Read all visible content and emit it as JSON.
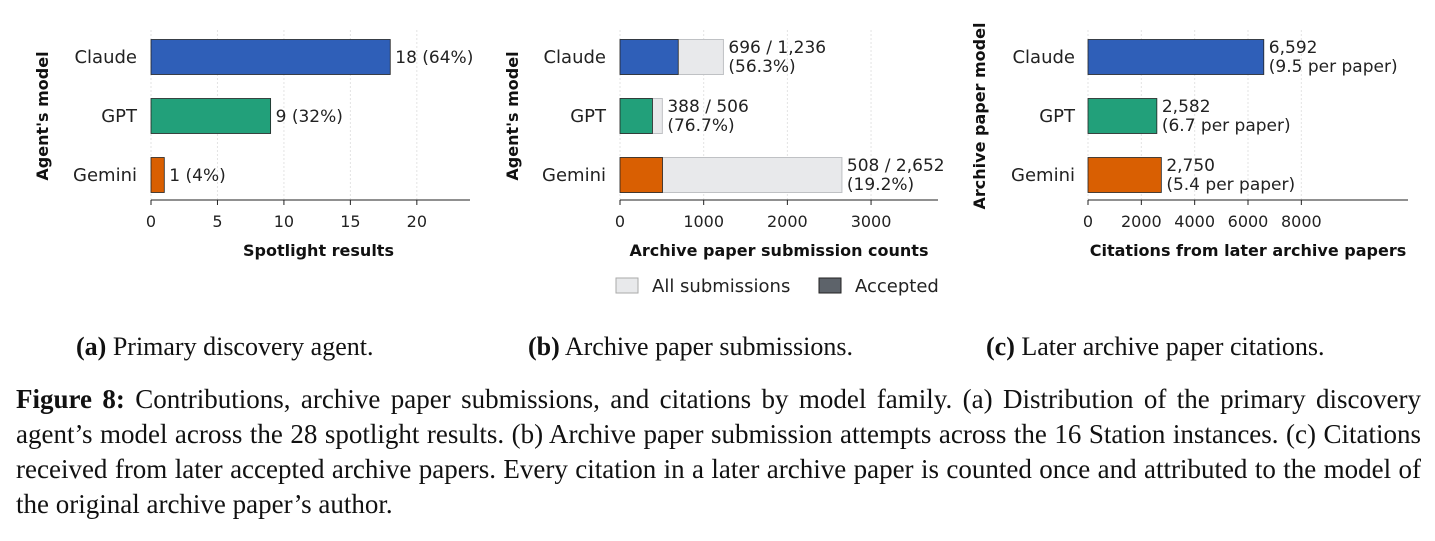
{
  "chart_data": [
    {
      "type": "bar",
      "orientation": "horizontal",
      "categories": [
        "Claude",
        "GPT",
        "Gemini"
      ],
      "values": [
        18,
        9,
        1
      ],
      "value_labels": [
        "18  (64%)",
        "9  (32%)",
        "1  (4%)"
      ],
      "colors": [
        "#2f5fb8",
        "#22a07a",
        "#d95f02"
      ],
      "xlabel": "Spotlight results",
      "ylabel": "Agent's model",
      "xlim": [
        0,
        24
      ],
      "xticks": [
        0,
        5,
        10,
        15,
        20
      ],
      "xtick_labels": [
        "0",
        "5",
        "10",
        "15",
        "20"
      ],
      "grid": true
    },
    {
      "type": "bar",
      "orientation": "horizontal",
      "categories": [
        "Claude",
        "GPT",
        "Gemini"
      ],
      "series": [
        {
          "name": "All submissions",
          "values": [
            1236,
            506,
            2652
          ],
          "color": "#e8e9eb"
        },
        {
          "name": "Accepted",
          "values": [
            696,
            388,
            508
          ],
          "color": "#5d636a"
        }
      ],
      "accepted_colors": [
        "#2f5fb8",
        "#22a07a",
        "#d95f02"
      ],
      "value_labels_line1": [
        "696 / 1,236",
        "388 / 506",
        "508 / 2,652"
      ],
      "value_labels_line2": [
        "(56.3%)",
        "(76.7%)",
        "(19.2%)"
      ],
      "xlabel": "Archive paper submission counts",
      "ylabel": "Agent's model",
      "xlim": [
        0,
        3800
      ],
      "xticks": [
        0,
        1000,
        2000,
        3000
      ],
      "xtick_labels": [
        "0",
        "1000",
        "2000",
        "3000"
      ],
      "legend": [
        "All submissions",
        "Accepted"
      ],
      "legend_position": "bottom",
      "grid": true
    },
    {
      "type": "bar",
      "orientation": "horizontal",
      "categories": [
        "Claude",
        "GPT",
        "Gemini"
      ],
      "values": [
        6592,
        2582,
        2750
      ],
      "value_labels_line1": [
        "6,592",
        "2,582",
        "2,750"
      ],
      "value_labels_line2": [
        "(9.5 per paper)",
        "(6.7 per paper)",
        "(5.4 per paper)"
      ],
      "colors": [
        "#2f5fb8",
        "#22a07a",
        "#d95f02"
      ],
      "xlabel": "Citations from later archive papers",
      "ylabel": "Archive paper model",
      "xlim": [
        0,
        12000
      ],
      "xticks": [
        0,
        2000,
        4000,
        6000,
        8000
      ],
      "xtick_labels": [
        "0",
        "2000",
        "4000",
        "6000",
        "8000"
      ],
      "grid": true
    }
  ],
  "subcaptions": [
    {
      "tag": "(a)",
      "text": " Primary discovery agent."
    },
    {
      "tag": "(b)",
      "text": " Archive paper submissions."
    },
    {
      "tag": "(c)",
      "text": " Later archive paper citations."
    }
  ],
  "caption": {
    "label": "Figure 8:",
    "text": " Contributions, archive paper submissions, and citations by model family. (a) Distribution of the primary discovery agent’s model across the 28 spotlight results. (b) Archive paper submission attempts across the 16 Station instances. (c) Citations received from later accepted archive papers. Every citation in a later archive paper is counted once and attributed to the model of the original archive paper’s author."
  }
}
